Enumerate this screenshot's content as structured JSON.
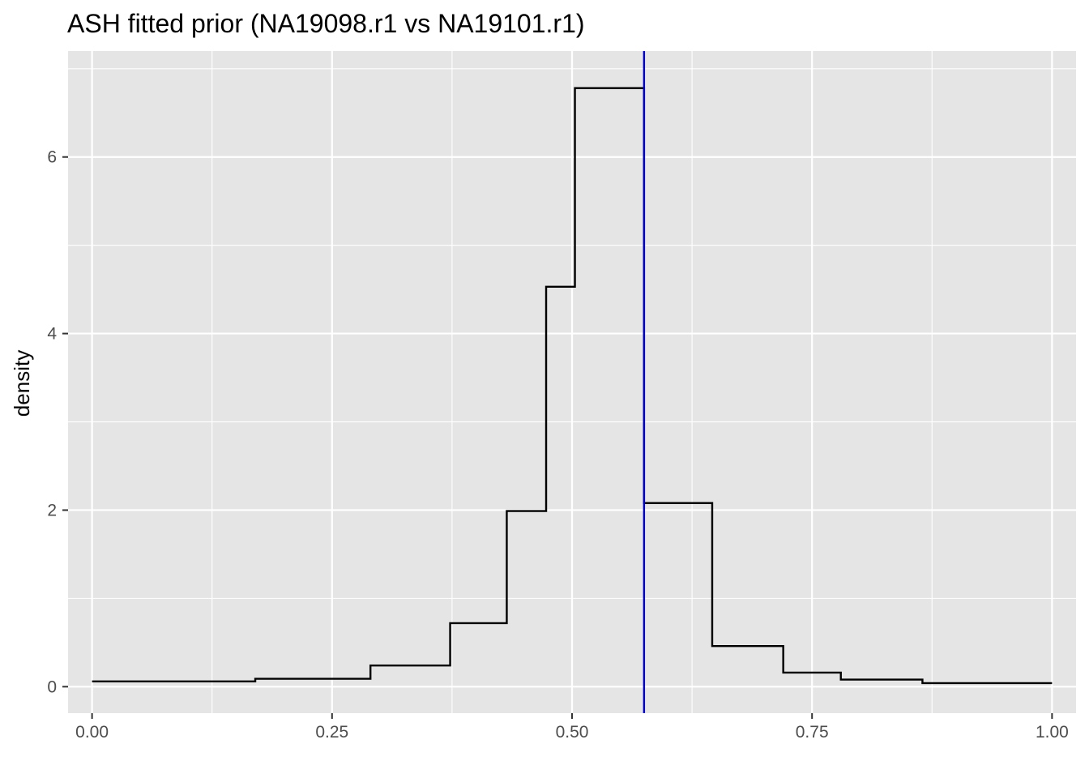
{
  "chart_data": {
    "type": "line",
    "title": "ASH fitted prior (NA19098.r1 vs NA19101.r1)",
    "xlabel": "",
    "ylabel": "density",
    "xlim": [
      -0.025,
      1.025
    ],
    "ylim": [
      -0.3,
      7.2
    ],
    "x_ticks": [
      0.0,
      0.25,
      0.5,
      0.75,
      1.0
    ],
    "x_tick_labels": [
      "0.00",
      "0.25",
      "0.50",
      "0.75",
      "1.00"
    ],
    "y_ticks": [
      0,
      2,
      4,
      6
    ],
    "y_tick_labels": [
      "0",
      "2",
      "4",
      "6"
    ],
    "grid": true,
    "legend": "none",
    "series": [
      {
        "style": "step",
        "color": "#000000",
        "x": [
          0.0,
          0.17,
          0.17,
          0.29,
          0.29,
          0.373,
          0.373,
          0.432,
          0.432,
          0.473,
          0.473,
          0.503,
          0.503,
          0.575,
          0.575,
          0.646,
          0.646,
          0.72,
          0.72,
          0.78,
          0.78,
          0.865,
          0.865,
          1.0
        ],
        "y": [
          0.06,
          0.06,
          0.09,
          0.09,
          0.24,
          0.24,
          0.72,
          0.72,
          1.99,
          1.99,
          4.53,
          4.53,
          6.78,
          6.78,
          2.08,
          2.08,
          0.46,
          0.46,
          0.16,
          0.16,
          0.08,
          0.08,
          0.04,
          0.04
        ]
      }
    ],
    "vline": {
      "x": 0.575,
      "color": "#0000cd"
    },
    "colors": {
      "panel_background": "#e5e5e5",
      "grid_line": "#ffffff",
      "tick_label": "#4d4d4d"
    }
  }
}
